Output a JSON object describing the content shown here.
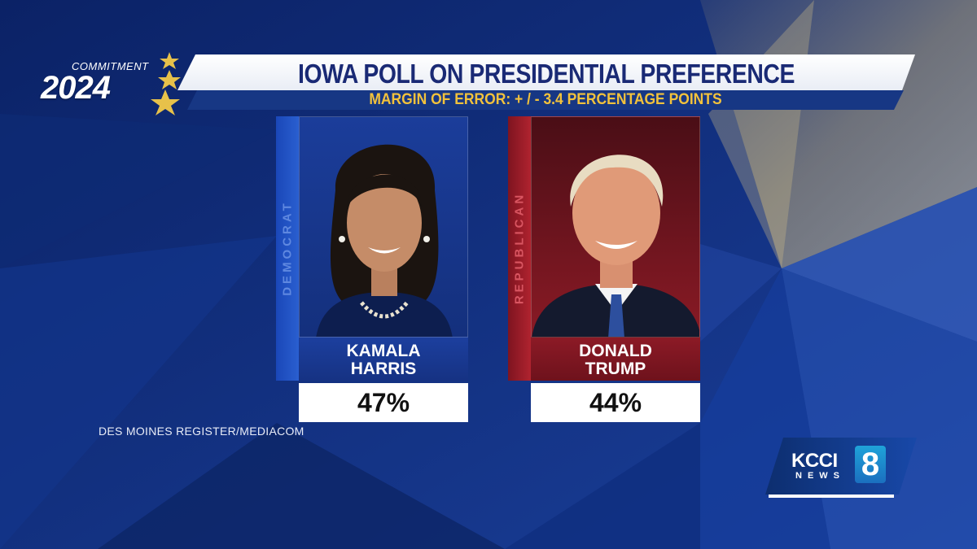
{
  "logo": {
    "top": "COMMITMENT",
    "year": "2024"
  },
  "header": {
    "title": "IOWA POLL ON PRESIDENTIAL PREFERENCE",
    "subtitle": "MARGIN OF ERROR: + / - 3.4 PERCENTAGE POINTS"
  },
  "candidates": [
    {
      "party": "DEMOCRAT",
      "first_name": "KAMALA",
      "last_name": "HARRIS",
      "percent": "47%",
      "color": "#1c3f9e"
    },
    {
      "party": "REPUBLICAN",
      "first_name": "DONALD",
      "last_name": "TRUMP",
      "percent": "44%",
      "color": "#8c1a26"
    }
  ],
  "source": "DES MOINES REGISTER/MEDIACOM",
  "station": {
    "call": "KCCI",
    "news": "NEWS",
    "channel": "8"
  },
  "colors": {
    "background": "#0f2a78",
    "title_text": "#1a2a75",
    "subtitle_text": "#f2c23c"
  }
}
